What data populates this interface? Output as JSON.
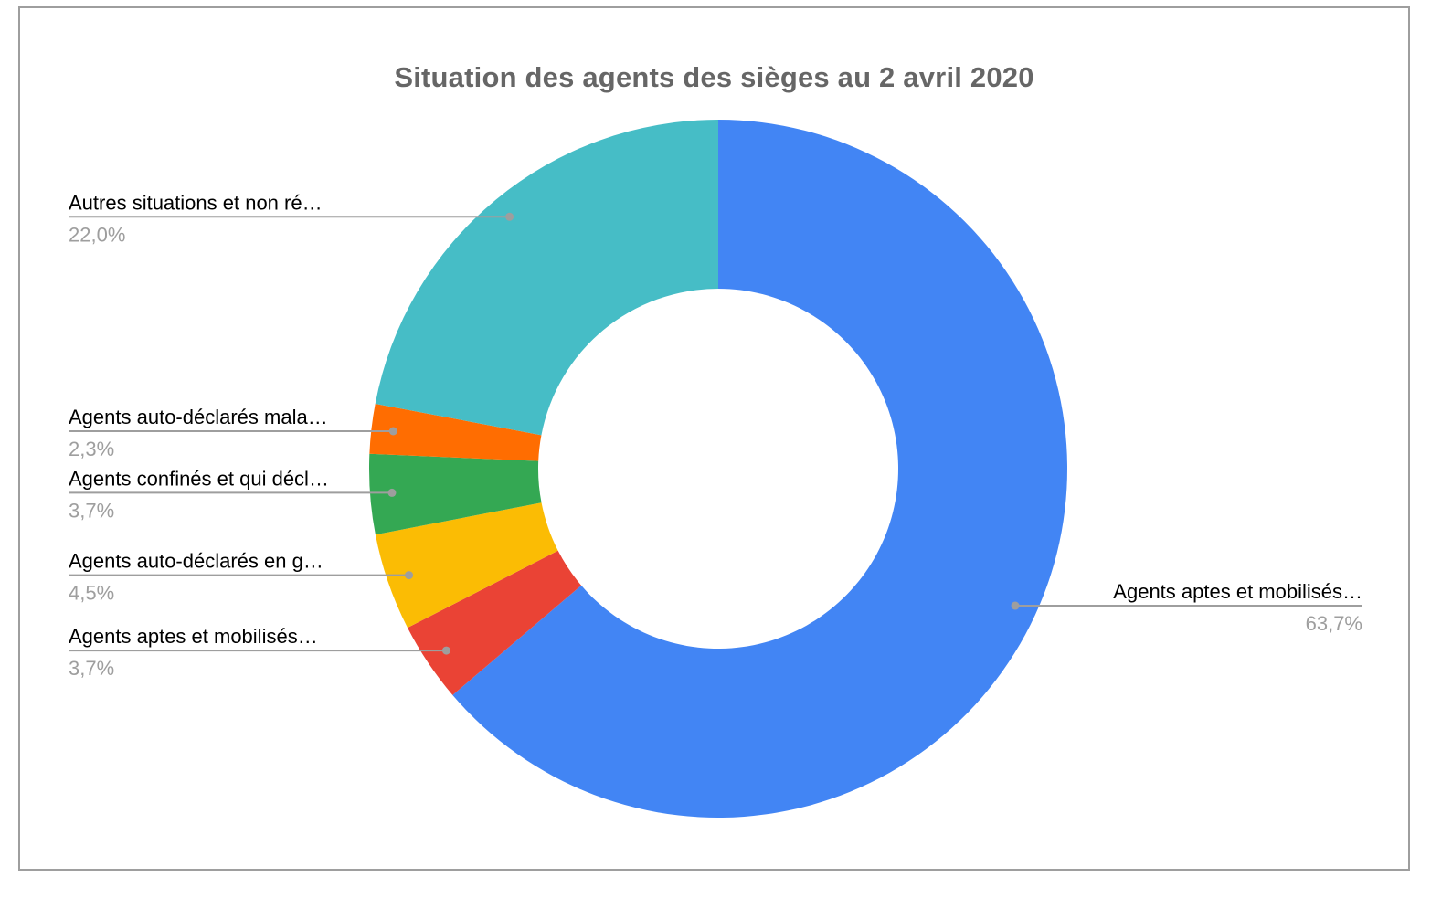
{
  "chart_data": {
    "type": "pie",
    "donut": true,
    "title": "Situation des agents des sièges au 2 avril 2020",
    "start_angle_deg": 0,
    "direction": "clockwise",
    "legend_position": "labeled",
    "title_color": "#666666",
    "label_text_color": "#000000",
    "percent_text_color": "#9e9e9e",
    "leader_line_color": "#9e9e9e",
    "slices": [
      {
        "label": "Agents aptes et mobilisés…",
        "percent_label": "63,7%",
        "value": 63.7,
        "color": "#4285F4"
      },
      {
        "label": "Agents aptes et mobilisés…",
        "percent_label": "3,7%",
        "value": 3.7,
        "color": "#EA4335"
      },
      {
        "label": "Agents auto-déclarés en g…",
        "percent_label": "4,5%",
        "value": 4.5,
        "color": "#FBBC04"
      },
      {
        "label": "Agents confinés et qui décl…",
        "percent_label": "3,7%",
        "value": 3.7,
        "color": "#34A853"
      },
      {
        "label": "Agents auto-déclarés mala…",
        "percent_label": "2,3%",
        "value": 2.3,
        "color": "#FF6D01"
      },
      {
        "label": "Autres situations et non ré…",
        "percent_label": "22,0%",
        "value": 22.0,
        "color": "#46BDC6"
      }
    ]
  }
}
